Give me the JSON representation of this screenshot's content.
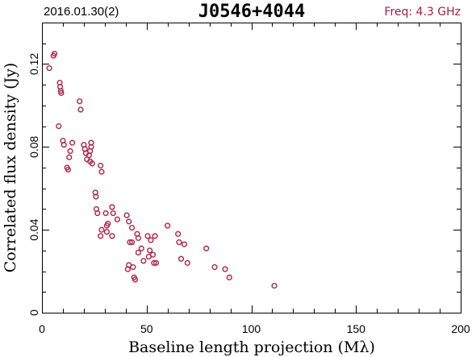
{
  "header": {
    "date": "2016.01.30(2)",
    "source": "J0546+4044",
    "freq": "Freq: 4.3 GHz"
  },
  "colors": {
    "points": "#b02a4a",
    "freq_text": "#a0203f"
  },
  "chart_data": {
    "type": "scatter",
    "title": "J0546+4044",
    "xlabel": "Baseline length projection (Mλ)",
    "ylabel": "Correlated flux density (Jy)",
    "xlim": [
      0,
      200
    ],
    "ylim": [
      0,
      0.14
    ],
    "x_ticks": [
      0,
      50,
      100,
      150,
      200
    ],
    "y_ticks": [
      0,
      0.04,
      0.08,
      0.12
    ],
    "x_tick_labels": [
      "0",
      "50",
      "100",
      "150",
      "200"
    ],
    "y_tick_labels": [
      "0",
      "0.04",
      "0.08",
      "0.12"
    ],
    "grid": false,
    "points": [
      [
        3.5,
        0.118
      ],
      [
        5.5,
        0.124
      ],
      [
        6.0,
        0.125
      ],
      [
        8.5,
        0.111
      ],
      [
        8.7,
        0.109
      ],
      [
        9.0,
        0.107
      ],
      [
        9.2,
        0.106
      ],
      [
        8.0,
        0.09
      ],
      [
        10.0,
        0.083
      ],
      [
        10.5,
        0.081
      ],
      [
        12.0,
        0.07
      ],
      [
        12.5,
        0.069
      ],
      [
        13.0,
        0.075
      ],
      [
        13.5,
        0.078
      ],
      [
        14.5,
        0.082
      ],
      [
        18.0,
        0.102
      ],
      [
        18.5,
        0.098
      ],
      [
        20.0,
        0.081
      ],
      [
        20.5,
        0.079
      ],
      [
        21.0,
        0.077
      ],
      [
        21.5,
        0.074
      ],
      [
        22.5,
        0.076
      ],
      [
        23.0,
        0.073
      ],
      [
        23.5,
        0.082
      ],
      [
        23.5,
        0.08
      ],
      [
        23.0,
        0.078
      ],
      [
        24.0,
        0.072
      ],
      [
        25.5,
        0.058
      ],
      [
        25.8,
        0.056
      ],
      [
        26.0,
        0.05
      ],
      [
        26.5,
        0.048
      ],
      [
        28.0,
        0.071
      ],
      [
        28.5,
        0.068
      ],
      [
        28.5,
        0.04
      ],
      [
        28.0,
        0.037
      ],
      [
        30.5,
        0.048
      ],
      [
        31.0,
        0.042
      ],
      [
        31.0,
        0.039
      ],
      [
        31.5,
        0.043
      ],
      [
        33.5,
        0.051
      ],
      [
        34.0,
        0.048
      ],
      [
        33.5,
        0.037
      ],
      [
        36.0,
        0.045
      ],
      [
        40.5,
        0.047
      ],
      [
        41.5,
        0.044
      ],
      [
        41.0,
        0.021
      ],
      [
        41.5,
        0.023
      ],
      [
        42.0,
        0.034
      ],
      [
        43.0,
        0.034
      ],
      [
        43.0,
        0.041
      ],
      [
        43.5,
        0.022
      ],
      [
        44.0,
        0.017
      ],
      [
        44.5,
        0.016
      ],
      [
        45.5,
        0.038
      ],
      [
        46.0,
        0.036
      ],
      [
        46.0,
        0.029
      ],
      [
        47.5,
        0.031
      ],
      [
        48.5,
        0.025
      ],
      [
        50.5,
        0.037
      ],
      [
        51.0,
        0.027
      ],
      [
        51.5,
        0.03
      ],
      [
        52.0,
        0.035
      ],
      [
        53.0,
        0.028
      ],
      [
        53.5,
        0.024
      ],
      [
        54.0,
        0.037
      ],
      [
        54.5,
        0.024
      ],
      [
        60.0,
        0.042
      ],
      [
        65.0,
        0.038
      ],
      [
        65.5,
        0.034
      ],
      [
        66.5,
        0.026
      ],
      [
        68.0,
        0.033
      ],
      [
        69.5,
        0.024
      ],
      [
        78.5,
        0.031
      ],
      [
        82.5,
        0.022
      ],
      [
        87.5,
        0.021
      ],
      [
        89.5,
        0.017
      ],
      [
        111.0,
        0.013
      ]
    ]
  }
}
